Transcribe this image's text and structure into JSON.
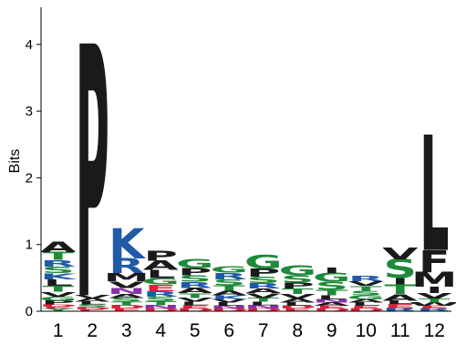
{
  "chart_data": {
    "type": "sequence-logo",
    "ylabel": "Bits",
    "ylim": [
      0,
      4.5
    ],
    "yticks": [
      "0",
      "1",
      "2",
      "3",
      "4"
    ],
    "ytick_values": [
      0,
      1,
      2,
      3,
      4
    ],
    "colors": {
      "hydrophobic": "#1a1a1a",
      "polar": "#1f8a3a",
      "basic": "#1f5aa8",
      "acidic": "#d6243a",
      "special": "#8a2fa8"
    },
    "residue_color_groups": {
      "A": "hydrophobic",
      "V": "hydrophobic",
      "L": "hydrophobic",
      "I": "hydrophobic",
      "M": "hydrophobic",
      "F": "hydrophobic",
      "W": "hydrophobic",
      "P": "hydrophobic",
      "G": "polar",
      "S": "polar",
      "T": "polar",
      "Y": "polar",
      "C": "polar",
      "N": "special",
      "Q": "special",
      "K": "basic",
      "R": "basic",
      "H": "basic",
      "D": "acidic",
      "E": "acidic"
    },
    "positions": [
      {
        "label": "1",
        "letters": [
          [
            "Y",
            0.04
          ],
          [
            "E",
            0.03
          ],
          [
            "D",
            0.03
          ],
          [
            "P",
            0.06
          ],
          [
            "G",
            0.06
          ],
          [
            "V",
            0.07
          ],
          [
            "T",
            0.09
          ],
          [
            "L",
            0.1
          ],
          [
            "K",
            0.09
          ],
          [
            "S",
            0.1
          ],
          [
            "R",
            0.1
          ],
          [
            "T",
            0.12
          ],
          [
            "A",
            0.16
          ]
        ]
      },
      {
        "label": "2",
        "letters": [
          [
            "E",
            0.03
          ],
          [
            "D",
            0.03
          ],
          [
            "S",
            0.04
          ],
          [
            "L",
            0.04
          ],
          [
            "A",
            0.05
          ],
          [
            "V",
            0.05
          ],
          [
            "P",
            3.78
          ]
        ]
      },
      {
        "label": "3",
        "letters": [
          [
            "E",
            0.04
          ],
          [
            "D",
            0.05
          ],
          [
            "T",
            0.05
          ],
          [
            "S",
            0.06
          ],
          [
            "A",
            0.06
          ],
          [
            "N",
            0.09
          ],
          [
            "V",
            0.1
          ],
          [
            "M",
            0.12
          ],
          [
            "R",
            0.22
          ],
          [
            "K",
            0.45
          ]
        ]
      },
      {
        "label": "4",
        "letters": [
          [
            "D",
            0.04
          ],
          [
            "N",
            0.05
          ],
          [
            "T",
            0.06
          ],
          [
            "S",
            0.07
          ],
          [
            "R",
            0.08
          ],
          [
            "E",
            0.1
          ],
          [
            "G",
            0.1
          ],
          [
            "L",
            0.12
          ],
          [
            "A",
            0.14
          ],
          [
            "P",
            0.15
          ]
        ]
      },
      {
        "label": "5",
        "letters": [
          [
            "D",
            0.04
          ],
          [
            "E",
            0.05
          ],
          [
            "L",
            0.05
          ],
          [
            "V",
            0.06
          ],
          [
            "T",
            0.07
          ],
          [
            "A",
            0.08
          ],
          [
            "R",
            0.09
          ],
          [
            "S",
            0.1
          ],
          [
            "P",
            0.11
          ],
          [
            "G",
            0.13
          ]
        ]
      },
      {
        "label": "6",
        "letters": [
          [
            "D",
            0.04
          ],
          [
            "N",
            0.04
          ],
          [
            "L",
            0.05
          ],
          [
            "V",
            0.05
          ],
          [
            "K",
            0.06
          ],
          [
            "A",
            0.07
          ],
          [
            "T",
            0.08
          ],
          [
            "S",
            0.09
          ],
          [
            "R",
            0.1
          ],
          [
            "G",
            0.1
          ]
        ]
      },
      {
        "label": "7",
        "letters": [
          [
            "D",
            0.04
          ],
          [
            "N",
            0.05
          ],
          [
            "L",
            0.05
          ],
          [
            "T",
            0.06
          ],
          [
            "V",
            0.07
          ],
          [
            "A",
            0.07
          ],
          [
            "R",
            0.08
          ],
          [
            "S",
            0.1
          ],
          [
            "P",
            0.12
          ],
          [
            "G",
            0.2
          ]
        ]
      },
      {
        "label": "8",
        "letters": [
          [
            "E",
            0.04
          ],
          [
            "D",
            0.04
          ],
          [
            "L",
            0.05
          ],
          [
            "A",
            0.06
          ],
          [
            "V",
            0.07
          ],
          [
            "T",
            0.08
          ],
          [
            "P",
            0.09
          ],
          [
            "S",
            0.11
          ],
          [
            "G",
            0.15
          ]
        ]
      },
      {
        "label": "9",
        "letters": [
          [
            "D",
            0.04
          ],
          [
            "E",
            0.04
          ],
          [
            "A",
            0.05
          ],
          [
            "N",
            0.05
          ],
          [
            "L",
            0.06
          ],
          [
            "T",
            0.08
          ],
          [
            "S",
            0.12
          ],
          [
            "G",
            0.13
          ],
          [
            "I",
            0.08
          ]
        ]
      },
      {
        "label": "10",
        "letters": [
          [
            "D",
            0.04
          ],
          [
            "E",
            0.04
          ],
          [
            "L",
            0.05
          ],
          [
            "A",
            0.05
          ],
          [
            "G",
            0.06
          ],
          [
            "S",
            0.07
          ],
          [
            "T",
            0.07
          ],
          [
            "V",
            0.07
          ],
          [
            "R",
            0.08
          ]
        ]
      },
      {
        "label": "11",
        "letters": [
          [
            "R",
            0.05
          ],
          [
            "E",
            0.06
          ],
          [
            "L",
            0.05
          ],
          [
            "A",
            0.1
          ],
          [
            "T",
            0.14
          ],
          [
            "I",
            0.1
          ],
          [
            "S",
            0.28
          ],
          [
            "V",
            0.18
          ]
        ]
      },
      {
        "label": "12",
        "letters": [
          [
            "R",
            0.04
          ],
          [
            "E",
            0.04
          ],
          [
            "W",
            0.05
          ],
          [
            "T",
            0.06
          ],
          [
            "V",
            0.08
          ],
          [
            "I",
            0.1
          ],
          [
            "M",
            0.22
          ],
          [
            "F",
            0.33
          ],
          [
            "L",
            1.73
          ]
        ]
      }
    ]
  }
}
